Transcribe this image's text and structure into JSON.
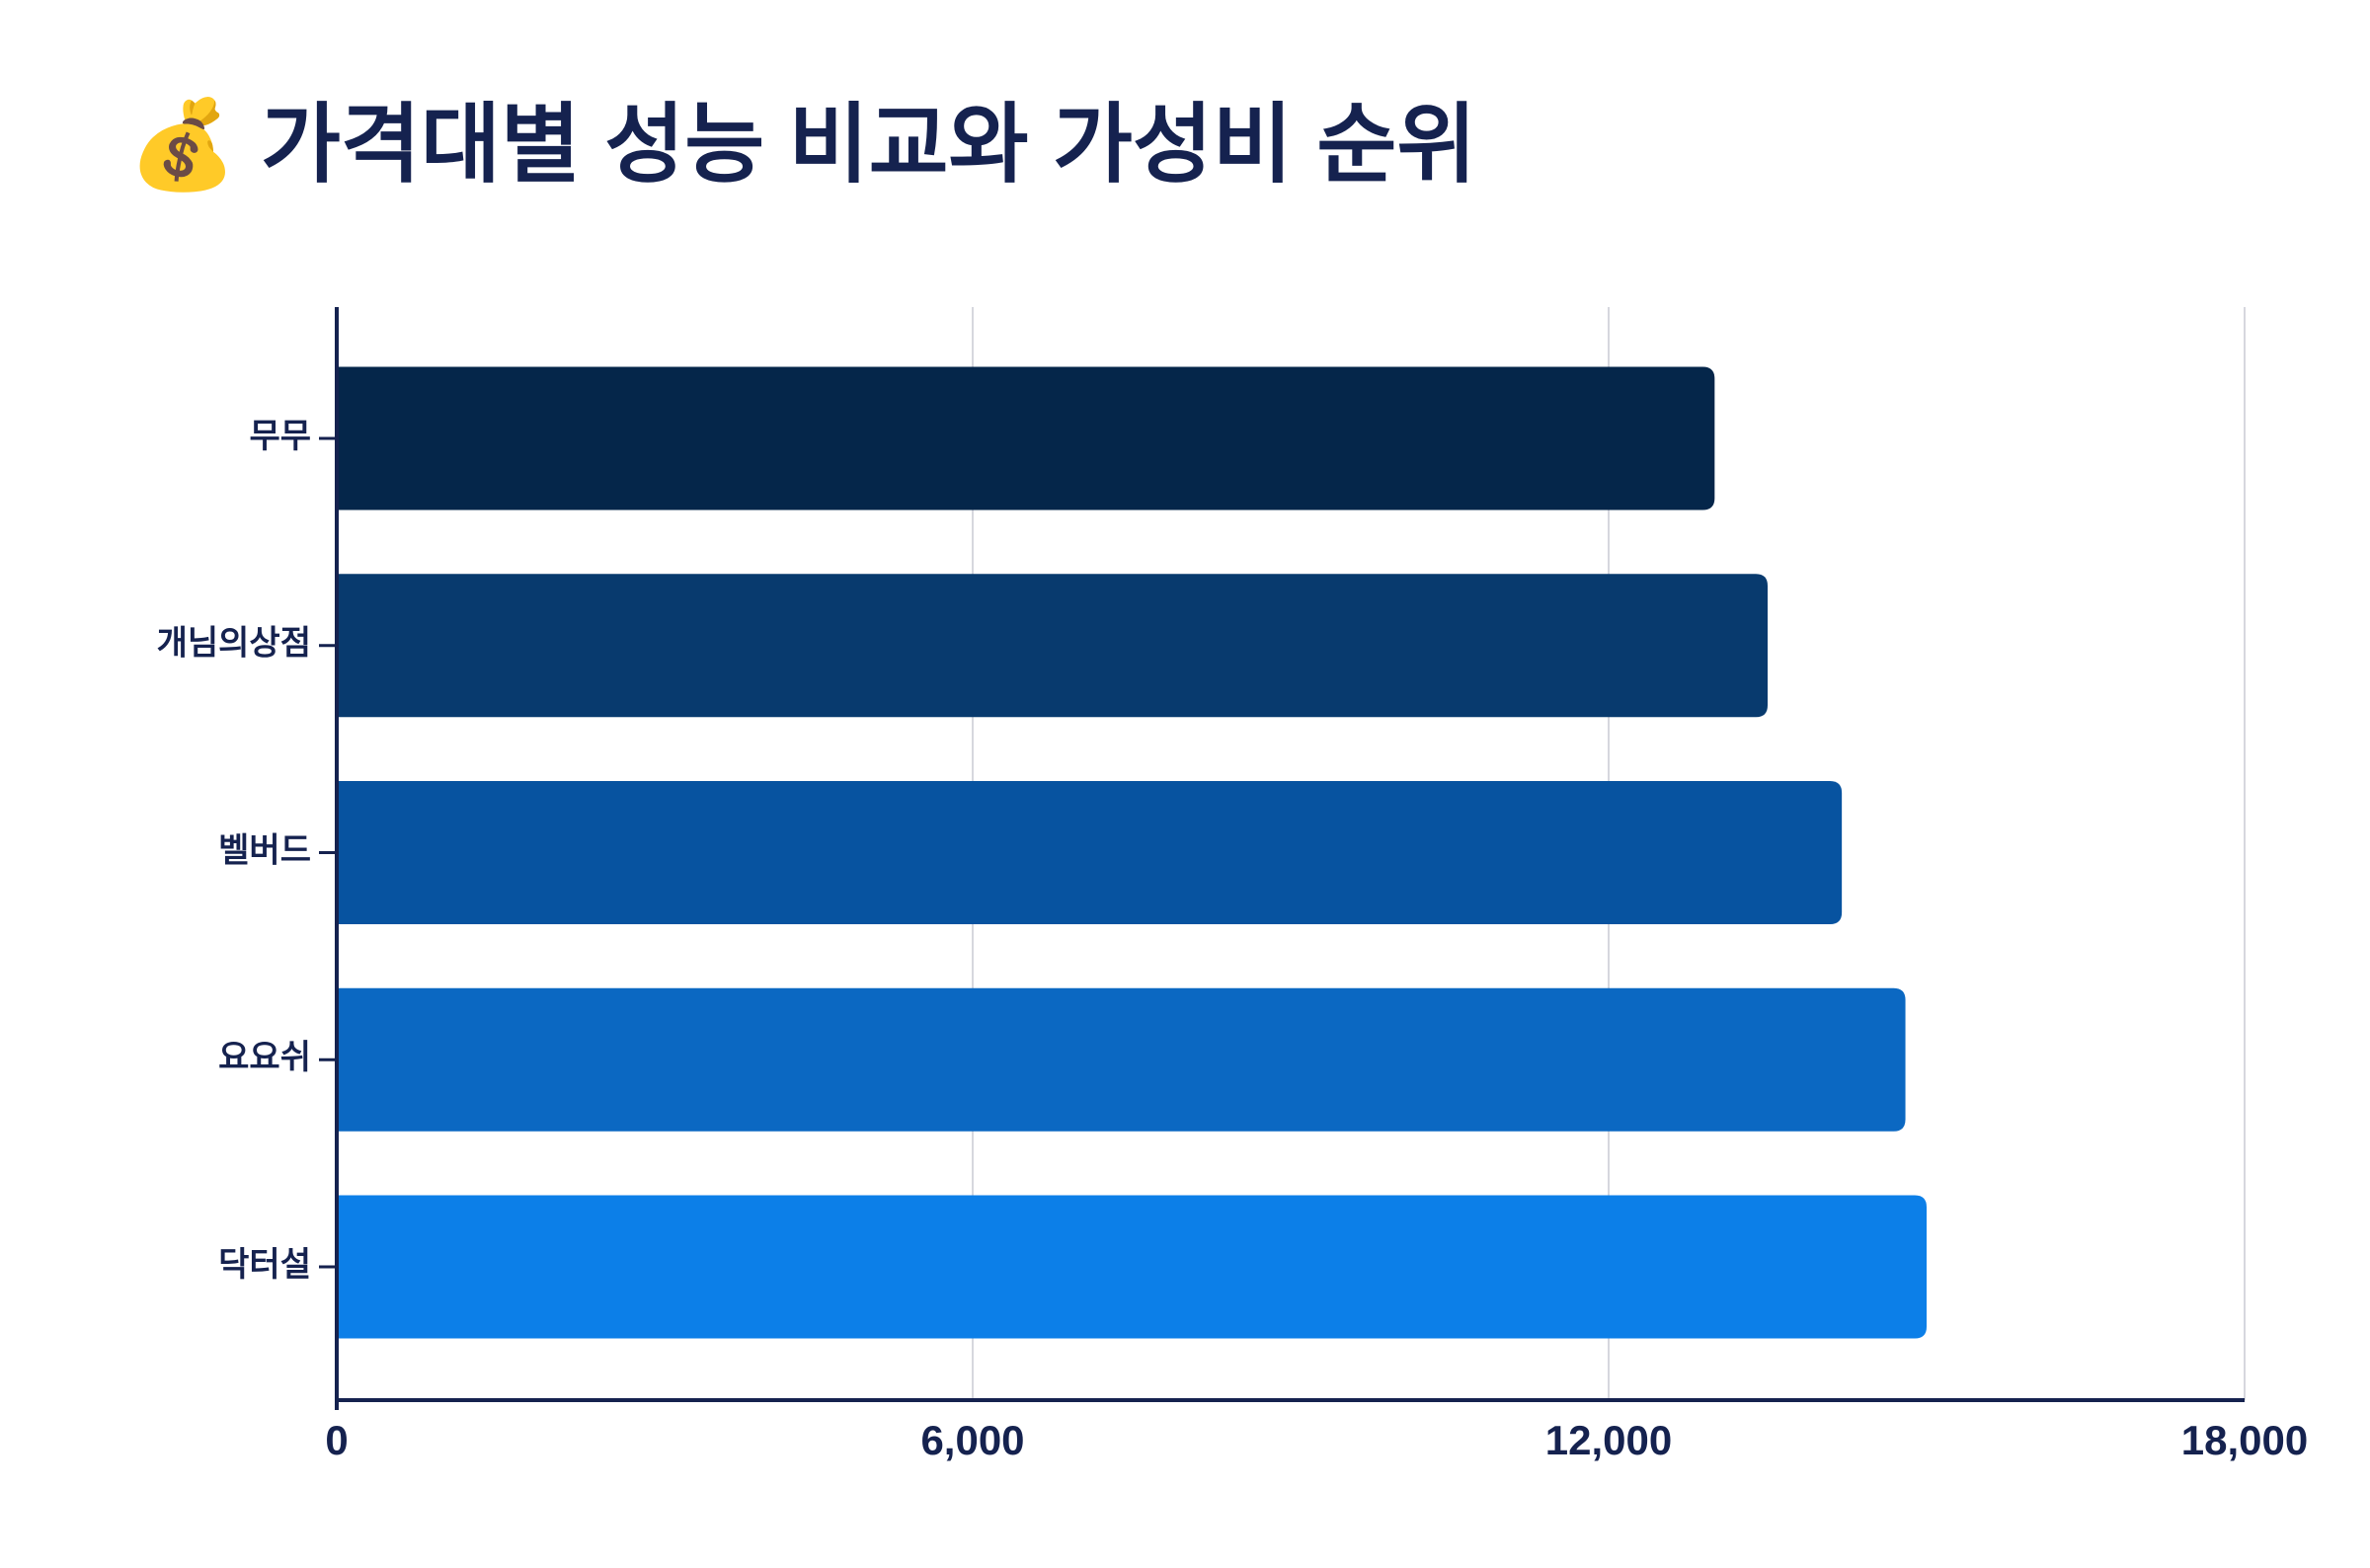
{
  "chart_data": {
    "type": "hbar",
    "title": "💰 가격대별 성능 비교와 가성비 순위",
    "categories": [
      "무무",
      "개님의상점",
      "벨버드",
      "요요쉬",
      "닥터설"
    ],
    "values": [
      13000,
      13500,
      14200,
      14800,
      15000
    ],
    "colors": [
      "#05264a",
      "#083a6e",
      "#0753a0",
      "#0b68c2",
      "#0c7fe8"
    ],
    "xlim": [
      0,
      18000
    ],
    "xticks": [
      0,
      {
        "value": 6000,
        "label": "6,000"
      },
      {
        "value": 12000,
        "label": "12,000"
      },
      {
        "value": 18000,
        "label": "18,000"
      }
    ],
    "grid": true
  }
}
